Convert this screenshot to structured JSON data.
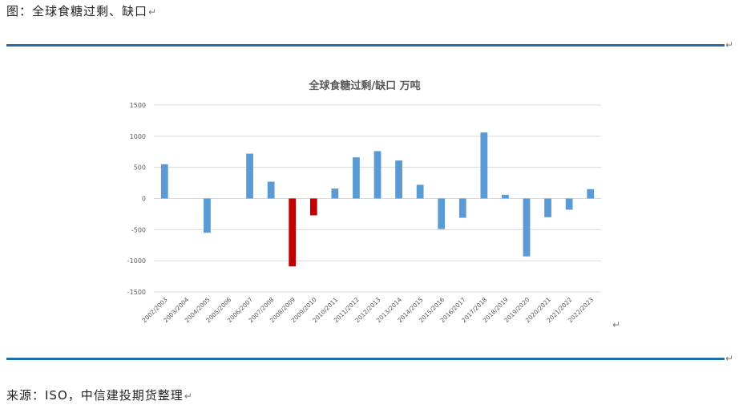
{
  "caption": {
    "text": "图：全球食糖过剩、缺口",
    "mark": "↵"
  },
  "source": {
    "text": "来源：ISO，中信建投期货整理",
    "mark": "↵"
  },
  "marks": {
    "paragraph": "↵"
  },
  "colors": {
    "rule": "#1f6fb2",
    "bar_default": "#5b9bd5",
    "bar_highlight": "#c00000",
    "grid": "#d9d9d9",
    "axis_text": "#595959"
  },
  "chart_data": {
    "type": "bar",
    "title": "全球食糖过剩/缺口 万吨",
    "xlabel": "",
    "ylabel": "",
    "ylim": [
      -1500,
      1500
    ],
    "yticks": [
      1500,
      1000,
      500,
      0,
      -500,
      -1000,
      -1500
    ],
    "grid": true,
    "legend": "none",
    "categories": [
      "2002/2003",
      "2003/2004",
      "2004/2005",
      "2005/2006",
      "2006/2007",
      "2007/2008",
      "2008/2009",
      "2009/2010",
      "2010/2011",
      "2011/2012",
      "2012/2013",
      "2013/2014",
      "2014/2015",
      "2015/2016",
      "2016/2017",
      "2017/2018",
      "2018/2019",
      "2019/2020",
      "2020/2021",
      "2021/2022",
      "2022/2023"
    ],
    "values": [
      550,
      0,
      -550,
      0,
      720,
      270,
      -1090,
      -270,
      160,
      660,
      760,
      610,
      220,
      -490,
      -310,
      1060,
      60,
      -930,
      -300,
      -180,
      150
    ],
    "highlight": [
      false,
      false,
      false,
      false,
      false,
      false,
      true,
      true,
      false,
      false,
      false,
      false,
      false,
      false,
      false,
      false,
      false,
      false,
      false,
      false,
      false
    ]
  }
}
